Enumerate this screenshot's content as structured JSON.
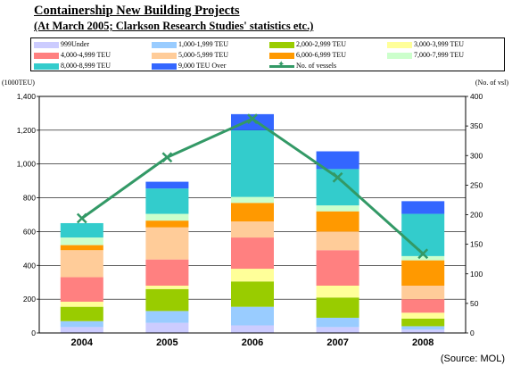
{
  "title": "Containership New Building Projects",
  "subtitle": "(At  March  2005;  Clarkson  Research  Studies'  statistics  etc.)",
  "left_unit": "(1000TEU)",
  "right_unit": "(No. of vsl)",
  "source": "(Source: MOL)",
  "chart_data": {
    "type": "bar",
    "stacked": true,
    "categories": [
      "2004",
      "2005",
      "2006",
      "2007",
      "2008"
    ],
    "ylim": [
      0,
      1400
    ],
    "yticks": [
      "0",
      "200",
      "400",
      "600",
      "800",
      "1,000",
      "1,200",
      "1,400"
    ],
    "y2lim": [
      0,
      400
    ],
    "y2ticks": [
      "0",
      "50",
      "100",
      "150",
      "200",
      "250",
      "300",
      "350",
      "400"
    ],
    "series": [
      {
        "name": "999Under",
        "color": "#ccccff",
        "values": [
          35,
          60,
          45,
          35,
          20
        ]
      },
      {
        "name": "1,000-1,999 TEU",
        "color": "#99ccff",
        "values": [
          35,
          70,
          110,
          55,
          20
        ]
      },
      {
        "name": "2,000-2,999 TEU",
        "color": "#99cc00",
        "values": [
          85,
          130,
          150,
          120,
          45
        ]
      },
      {
        "name": "3,000-3,999 TEU",
        "color": "#ffff99",
        "values": [
          30,
          20,
          75,
          70,
          35
        ]
      },
      {
        "name": "4,000-4,999 TEU",
        "color": "#ff8080",
        "values": [
          145,
          155,
          185,
          210,
          80
        ]
      },
      {
        "name": "5,000-5,999 TEU",
        "color": "#ffcc99",
        "values": [
          160,
          190,
          95,
          110,
          80
        ]
      },
      {
        "name": "6,000-6,999 TEU",
        "color": "#ff9900",
        "values": [
          30,
          40,
          110,
          120,
          150
        ]
      },
      {
        "name": "7,000-7,999 TEU",
        "color": "#ccffcc",
        "values": [
          45,
          40,
          35,
          35,
          25
        ]
      },
      {
        "name": "8,000-8,999 TEU",
        "color": "#33cccc",
        "values": [
          85,
          150,
          395,
          215,
          250
        ]
      },
      {
        "name": "9,000 TEU Over",
        "color": "#3366ff",
        "values": [
          0,
          40,
          95,
          105,
          75
        ]
      }
    ],
    "line_series": {
      "name": "No. of vessels",
      "color": "#339966",
      "axis": "right",
      "values": [
        194,
        297,
        362,
        263,
        134
      ]
    }
  }
}
